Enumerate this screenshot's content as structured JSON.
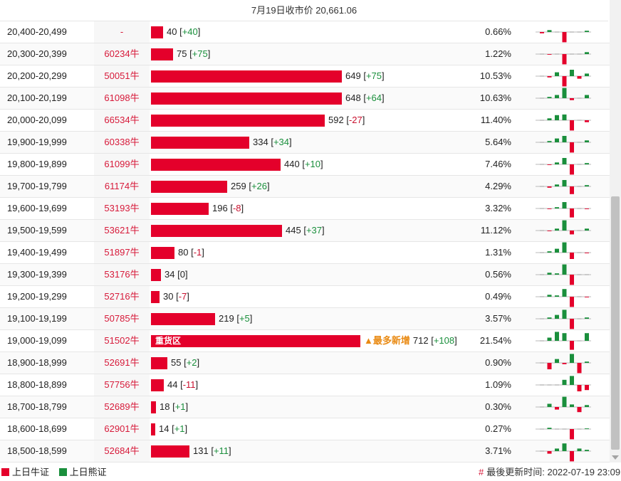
{
  "title": "7月19日收市价 20,661.06",
  "rows": [
    {
      "range": "20,400-20,499",
      "cbbc": "-",
      "value": 40,
      "change": "+40",
      "pct": "0.66%",
      "spark": [
        -2,
        3,
        0,
        -16,
        0,
        0,
        2
      ]
    },
    {
      "range": "20,300-20,399",
      "cbbc": "60234牛",
      "value": 75,
      "change": "+75",
      "pct": "1.22%",
      "spark": [
        0,
        -1,
        0,
        -16,
        0,
        0,
        3
      ]
    },
    {
      "range": "20,200-20,299",
      "cbbc": "50051牛",
      "value": 649,
      "change": "+75",
      "pct": "10.53%",
      "spark": [
        0,
        -2,
        6,
        -16,
        10,
        -4,
        4
      ]
    },
    {
      "range": "20,100-20,199",
      "cbbc": "61098牛",
      "value": 648,
      "change": "+64",
      "pct": "10.63%",
      "spark": [
        0,
        2,
        5,
        16,
        -3,
        0,
        5
      ]
    },
    {
      "range": "20,000-20,099",
      "cbbc": "66534牛",
      "value": 592,
      "change": "-27",
      "pct": "11.40%",
      "spark": [
        0,
        3,
        8,
        9,
        -16,
        0,
        -3
      ]
    },
    {
      "range": "19,900-19,999",
      "cbbc": "60338牛",
      "value": 334,
      "change": "+34",
      "pct": "5.64%",
      "spark": [
        0,
        2,
        6,
        10,
        -16,
        0,
        3
      ]
    },
    {
      "range": "19,800-19,899",
      "cbbc": "61099牛",
      "value": 440,
      "change": "+10",
      "pct": "7.46%",
      "spark": [
        0,
        -1,
        3,
        10,
        -16,
        0,
        2
      ]
    },
    {
      "range": "19,700-19,799",
      "cbbc": "61174牛",
      "value": 259,
      "change": "+26",
      "pct": "4.29%",
      "spark": [
        0,
        -2,
        3,
        10,
        -12,
        0,
        2
      ]
    },
    {
      "range": "19,600-19,699",
      "cbbc": "53193牛",
      "value": 196,
      "change": "-8",
      "pct": "3.32%",
      "spark": [
        0,
        -1,
        2,
        10,
        -14,
        0,
        -1
      ]
    },
    {
      "range": "19,500-19,599",
      "cbbc": "53621牛",
      "value": 445,
      "change": "+37",
      "pct": "11.12%",
      "spark": [
        0,
        -1,
        3,
        16,
        -6,
        0,
        3
      ]
    },
    {
      "range": "19,400-19,499",
      "cbbc": "51897牛",
      "value": 80,
      "change": "-1",
      "pct": "1.31%",
      "spark": [
        0,
        2,
        6,
        16,
        -10,
        0,
        -1
      ]
    },
    {
      "range": "19,300-19,399",
      "cbbc": "53176牛",
      "value": 34,
      "change": "0",
      "pct": "0.56%",
      "spark": [
        0,
        3,
        2,
        16,
        -16,
        0,
        0
      ]
    },
    {
      "range": "19,200-19,299",
      "cbbc": "52716牛",
      "value": 30,
      "change": "-7",
      "pct": "0.49%",
      "spark": [
        0,
        3,
        2,
        12,
        -16,
        0,
        -1
      ]
    },
    {
      "range": "19,100-19,199",
      "cbbc": "50785牛",
      "value": 219,
      "change": "+5",
      "pct": "3.57%",
      "spark": [
        0,
        2,
        6,
        14,
        -16,
        0,
        2
      ]
    },
    {
      "range": "19,000-19,099",
      "cbbc": "51502牛",
      "value": 712,
      "change": "+108",
      "pct": "21.54%",
      "spark": [
        0,
        5,
        14,
        12,
        -14,
        0,
        12
      ],
      "label": "重货区",
      "tag": "▲最多新增"
    },
    {
      "range": "18,900-18,999",
      "cbbc": "52691牛",
      "value": 55,
      "change": "+2",
      "pct": "0.90%",
      "spark": [
        0,
        -10,
        6,
        -2,
        14,
        -16,
        2
      ]
    },
    {
      "range": "18,800-18,899",
      "cbbc": "57756牛",
      "value": 44,
      "change": "-11",
      "pct": "1.09%",
      "spark": [
        0,
        0,
        0,
        8,
        14,
        -10,
        -8
      ]
    },
    {
      "range": "18,700-18,799",
      "cbbc": "52689牛",
      "value": 18,
      "change": "+1",
      "pct": "0.30%",
      "spark": [
        0,
        5,
        -4,
        16,
        4,
        -8,
        3
      ]
    },
    {
      "range": "18,600-18,699",
      "cbbc": "62901牛",
      "value": 14,
      "change": "+1",
      "pct": "0.27%",
      "spark": [
        0,
        2,
        0,
        0,
        -16,
        0,
        1
      ]
    },
    {
      "range": "18,500-18,599",
      "cbbc": "52684牛",
      "value": 131,
      "change": "+11",
      "pct": "3.71%",
      "spark": [
        0,
        -4,
        4,
        12,
        -16,
        4,
        2
      ]
    }
  ],
  "scale_max": 712,
  "legend": {
    "bull": "上日牛证",
    "bear": "上日熊证"
  },
  "updated": {
    "hash": "#",
    "text": "最後更新时间: 2022-07-19 23:09"
  },
  "colors": {
    "bull": "#e4002b",
    "bear": "#1a8f3c",
    "tag": "#e98a13"
  }
}
